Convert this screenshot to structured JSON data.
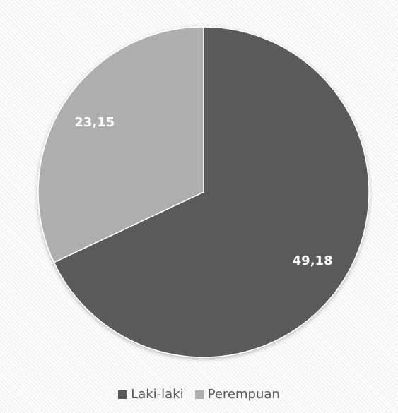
{
  "chart_data": {
    "type": "pie",
    "categories": [
      "Laki-laki",
      "Perempuan"
    ],
    "values": [
      49.18,
      23.15
    ],
    "data_labels": [
      "49,18",
      "23,15"
    ],
    "colors": [
      "#5a5a5a",
      "#aeaeae"
    ],
    "start_angle_deg": 0,
    "direction": "clockwise",
    "legend_position": "bottom"
  },
  "legend": {
    "items": [
      {
        "label": "Laki-laki",
        "color": "#5a5a5a"
      },
      {
        "label": "Perempuan",
        "color": "#aeaeae"
      }
    ]
  }
}
